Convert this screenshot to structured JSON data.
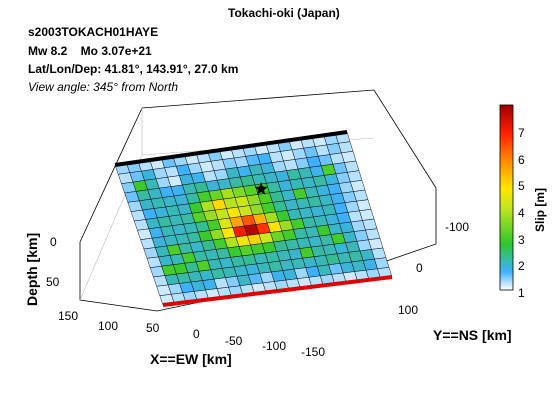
{
  "chart_data": {
    "type": "heatmap",
    "title": "Tokachi-oki (Japan)",
    "event_id": "s2003TOKACH01HAYE",
    "magnitude_line": "Mw 8.2    Mo 3.07e+21",
    "location_line": "Lat/Lon/Dep: 41.81°, 143.91°, 27.0 km",
    "view_line": "View angle: 345° from North",
    "xlabel": "X==EW [km]",
    "ylabel": "Y==NS [km]",
    "zlabel": "Depth [km]",
    "colorbar_label": "Slip [m]",
    "x_ticks": [
      "150",
      "100",
      "50",
      "0",
      "-50",
      "-100",
      "-150"
    ],
    "y_ticks": [
      "-100",
      "0",
      "100"
    ],
    "z_ticks": [
      "0",
      "50"
    ],
    "colorbar_ticks": [
      "1",
      "2",
      "3",
      "4",
      "5",
      "6",
      "7"
    ],
    "colorbar_range": [
      0,
      7.9
    ],
    "colors": {
      "top_edge": "#000000",
      "bottom_edge": "#e00000",
      "grid": "#000000",
      "hypocenter": "#000000"
    },
    "hypocenter_marker": "star",
    "grid_rows": 15,
    "grid_cols": 20,
    "slip": [
      [
        0.4,
        0.5,
        0.3,
        0.2,
        0.6,
        0.4,
        0.2,
        0.3,
        0.5,
        0.2,
        0.3,
        0.4,
        0.2,
        0.3,
        0.5,
        0.2,
        0.3,
        0.2,
        0.4,
        0.3
      ],
      [
        0.3,
        0.6,
        1.0,
        0.4,
        0.3,
        0.8,
        0.4,
        0.2,
        0.3,
        0.5,
        0.4,
        0.7,
        0.8,
        0.3,
        0.2,
        0.4,
        0.6,
        0.3,
        0.5,
        0.3
      ],
      [
        0.5,
        2.1,
        1.2,
        0.4,
        0.2,
        1.0,
        0.9,
        0.3,
        0.4,
        1.1,
        0.9,
        1.2,
        1.0,
        0.4,
        0.3,
        0.5,
        0.8,
        0.6,
        0.3,
        0.2
      ],
      [
        0.6,
        1.3,
        1.1,
        0.8,
        0.9,
        1.2,
        1.4,
        1.0,
        1.1,
        1.3,
        1.4,
        1.2,
        1.1,
        1.0,
        1.3,
        1.2,
        0.9,
        2.3,
        0.6,
        0.3
      ],
      [
        0.4,
        1.1,
        1.2,
        1.1,
        1.0,
        1.3,
        2.2,
        2.6,
        3.2,
        2.8,
        2.4,
        2.1,
        1.3,
        1.0,
        1.2,
        1.1,
        1.3,
        1.0,
        0.5,
        0.3
      ],
      [
        0.3,
        0.8,
        1.0,
        1.2,
        1.1,
        2.1,
        3.3,
        4.5,
        3.4,
        3.6,
        3.0,
        2.3,
        1.4,
        1.1,
        2.2,
        1.2,
        1.0,
        0.8,
        0.4,
        0.2
      ],
      [
        0.3,
        1.1,
        1.3,
        1.2,
        1.3,
        2.4,
        3.1,
        3.5,
        4.2,
        3.6,
        3.0,
        2.2,
        1.4,
        1.1,
        1.2,
        1.3,
        1.1,
        0.9,
        0.5,
        0.3
      ],
      [
        0.2,
        0.9,
        1.2,
        1.1,
        1.2,
        1.4,
        2.2,
        3.8,
        5.2,
        6.1,
        5.0,
        3.2,
        2.1,
        1.2,
        1.1,
        1.0,
        1.2,
        0.8,
        0.4,
        0.2
      ],
      [
        0.3,
        1.0,
        1.1,
        1.2,
        1.3,
        2.1,
        3.0,
        4.3,
        6.8,
        7.6,
        6.5,
        4.4,
        3.1,
        2.2,
        1.3,
        1.2,
        1.0,
        0.8,
        0.3,
        0.2
      ],
      [
        0.4,
        1.2,
        2.3,
        1.3,
        1.1,
        1.4,
        2.2,
        3.3,
        4.1,
        4.6,
        3.6,
        2.6,
        2.2,
        1.3,
        1.2,
        2.1,
        1.1,
        1.0,
        0.4,
        0.3
      ],
      [
        0.3,
        1.1,
        1.2,
        2.2,
        1.3,
        1.2,
        1.3,
        2.1,
        2.4,
        2.2,
        2.1,
        1.4,
        1.3,
        1.2,
        1.1,
        1.3,
        2.2,
        1.1,
        0.5,
        0.3
      ],
      [
        0.4,
        2.2,
        2.1,
        1.4,
        2.3,
        1.2,
        1.1,
        1.3,
        1.4,
        1.2,
        1.3,
        1.2,
        1.1,
        2.2,
        1.3,
        1.2,
        1.0,
        1.2,
        0.4,
        0.2
      ],
      [
        0.3,
        1.2,
        1.3,
        1.2,
        1.1,
        1.3,
        1.2,
        1.1,
        1.0,
        1.2,
        1.3,
        1.1,
        1.2,
        1.1,
        1.2,
        1.4,
        1.2,
        1.3,
        1.1,
        0.3
      ],
      [
        0.2,
        0.4,
        0.8,
        1.0,
        0.9,
        0.3,
        0.5,
        1.1,
        0.7,
        0.4,
        0.9,
        1.0,
        0.4,
        0.8,
        1.2,
        0.6,
        1.0,
        1.1,
        0.9,
        0.4
      ],
      [
        0.2,
        0.3,
        0.4,
        0.3,
        0.2,
        0.3,
        0.4,
        0.3,
        0.2,
        0.3,
        0.4,
        0.3,
        0.2,
        0.3,
        0.4,
        0.3,
        0.2,
        0.3,
        0.4,
        0.3
      ]
    ]
  }
}
